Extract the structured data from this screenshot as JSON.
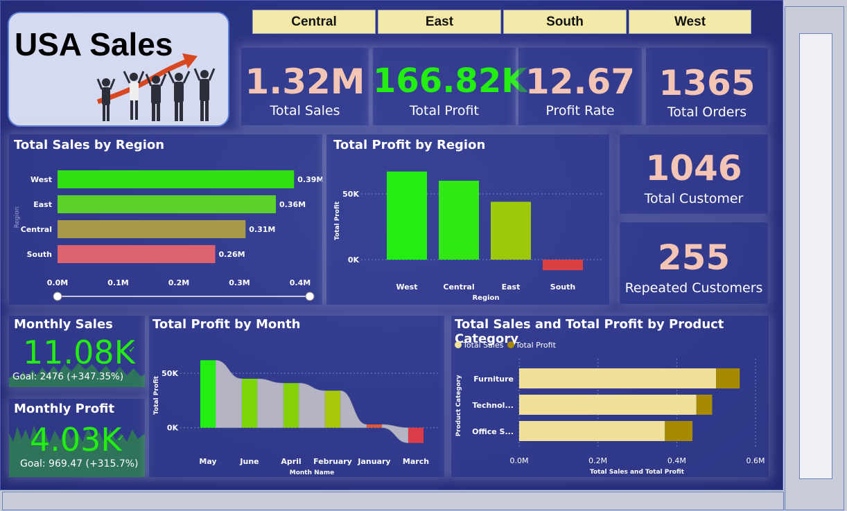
{
  "title": "USA Sales",
  "slicers": [
    "Central",
    "East",
    "South",
    "West"
  ],
  "kpis": {
    "total_sales": {
      "value": "1.32M",
      "label": "Total Sales"
    },
    "total_profit": {
      "value": "166.82K",
      "label": "Total Profit"
    },
    "profit_rate": {
      "value": "12.67",
      "label": "Profit Rate"
    },
    "total_orders": {
      "value": "1365",
      "label": "Total Orders"
    },
    "total_customer": {
      "value": "1046",
      "label": "Total Customer"
    },
    "repeated_customers": {
      "value": "255",
      "label": "Repeated Customers"
    }
  },
  "monthly_sales": {
    "title": "Monthly Sales",
    "value": "11.08K",
    "goal": "Goal: 2476 (+347.35%)"
  },
  "monthly_profit": {
    "title": "Monthly Profit",
    "value": "4.03K",
    "goal": "Goal: 969.47 (+315.7%)"
  },
  "colors": {
    "green": "#22ee11",
    "salmon": "#f4c4b4",
    "bar_tan": "#f0e09a",
    "bar_olive": "#a88a00"
  },
  "chart_data": [
    {
      "type": "bar",
      "orientation": "horizontal",
      "title": "Total Sales by Region",
      "ylabel": "Region",
      "categories": [
        "West",
        "East",
        "Central",
        "South"
      ],
      "values": [
        0.39,
        0.36,
        0.31,
        0.26
      ],
      "value_labels": [
        "0.39M",
        "0.36M",
        "0.31M",
        "0.26M"
      ],
      "bar_colors": [
        "#33e014",
        "#5ad22a",
        "#a89a4a",
        "#dd6270"
      ],
      "xticks": [
        "0.0M",
        "0.1M",
        "0.2M",
        "0.3M",
        "0.4M"
      ],
      "xlim": [
        0,
        0.4
      ]
    },
    {
      "type": "bar",
      "title": "Total Profit by Region",
      "xlabel": "Region",
      "ylabel": "Total Profit",
      "categories": [
        "West",
        "Central",
        "East",
        "South"
      ],
      "values": [
        67000,
        60000,
        44000,
        -8000
      ],
      "bar_colors": [
        "#22ee11",
        "#30e814",
        "#9ec80a",
        "#dc4040"
      ],
      "yticks": [
        "50K",
        "0K"
      ],
      "ytick_values": [
        50000,
        0
      ],
      "ylim": [
        -10000,
        70000
      ]
    },
    {
      "type": "waterfall",
      "title": "Total Profit by Month",
      "xlabel": "Month Name",
      "ylabel": "Total Profit",
      "categories": [
        "May",
        "June",
        "April",
        "February",
        "January",
        "March"
      ],
      "values": [
        62000,
        45000,
        41000,
        34000,
        3000,
        -14000
      ],
      "bar_colors": [
        "#22ee11",
        "#7cd60a",
        "#86d20a",
        "#a8c80a",
        "#e05838",
        "#dc3c48"
      ],
      "yticks": [
        "50K",
        "0K"
      ],
      "ytick_values": [
        50000,
        0
      ],
      "ylim": [
        -18000,
        66000
      ]
    },
    {
      "type": "bar",
      "orientation": "horizontal",
      "stacked": true,
      "title": "Total Sales and Total Profit by Product Category",
      "xlabel": "Total Sales and Total Profit",
      "ylabel": "Product Category",
      "categories": [
        "Furniture",
        "Technol...",
        "Office S..."
      ],
      "series": [
        {
          "name": "Total Sales",
          "values": [
            0.5,
            0.45,
            0.37
          ]
        },
        {
          "name": "Total Profit",
          "values": [
            0.06,
            0.04,
            0.07
          ]
        }
      ],
      "xticks": [
        "0.0M",
        "0.2M",
        "0.4M",
        "0.6M"
      ],
      "xlim": [
        0,
        0.6
      ]
    }
  ]
}
